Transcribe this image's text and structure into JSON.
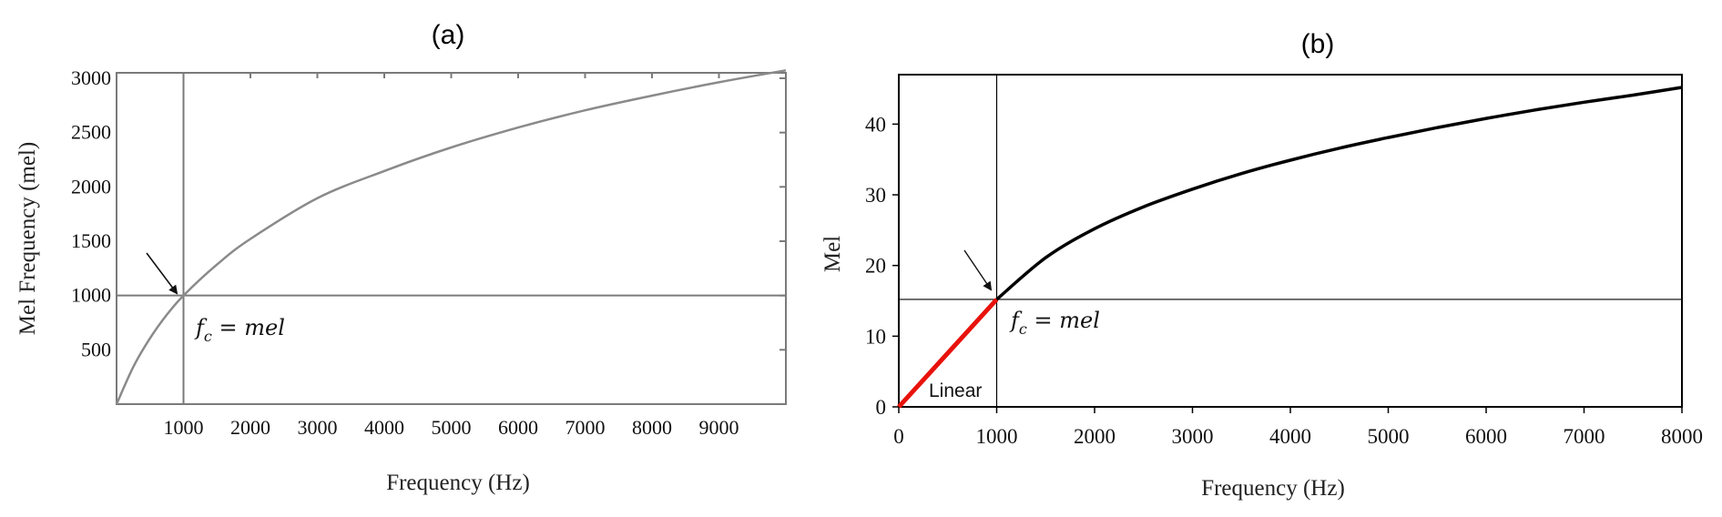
{
  "chart_data": [
    {
      "type": "line",
      "panel_title": "(a)",
      "xlabel": "Frequency (Hz)",
      "ylabel": "Mel Frequency (mel)",
      "xlim": [
        0,
        10000
      ],
      "ylim": [
        0,
        3050
      ],
      "x_ticks": [
        1000,
        2000,
        3000,
        4000,
        5000,
        6000,
        7000,
        8000,
        9000
      ],
      "y_ticks": [
        500,
        1000,
        1500,
        2000,
        2500,
        3000
      ],
      "series": [
        {
          "x": [
            0,
            250,
            500,
            750,
            1000,
            1500,
            2000,
            3000,
            4000,
            5000,
            6000,
            7000,
            8000,
            9000,
            10000
          ],
          "y": [
            0,
            343,
            607,
            822,
            1000,
            1285,
            1521,
            1896,
            2146,
            2363,
            2546,
            2705,
            2840,
            2963,
            3073
          ]
        }
      ],
      "reference_lines": {
        "x": 1000,
        "y": 1000
      },
      "annotation": {
        "text": "f_c = mel",
        "x": 1000,
        "y": 1000
      },
      "grid": false,
      "colors": {
        "curve": "#8a8a8a",
        "axes": "#7a7a7a"
      }
    },
    {
      "type": "line",
      "panel_title": "(b)",
      "xlabel": "Frequency (Hz)",
      "ylabel": "Mel",
      "xlim": [
        0,
        8000
      ],
      "ylim": [
        0,
        47
      ],
      "x_ticks": [
        0,
        1000,
        2000,
        3000,
        4000,
        5000,
        6000,
        7000,
        8000
      ],
      "y_ticks": [
        0,
        10,
        20,
        30,
        40
      ],
      "series": [
        {
          "name": "Linear",
          "x": [
            0,
            1000
          ],
          "y": [
            0,
            15.2
          ]
        },
        {
          "x": [
            1000,
            1500,
            2000,
            2500,
            3000,
            3500,
            4000,
            4500,
            5000,
            5500,
            6000,
            6500,
            7000,
            7500,
            8000
          ],
          "y": [
            15.2,
            21.1,
            25.2,
            28.3,
            30.8,
            33.0,
            34.9,
            36.6,
            38.1,
            39.5,
            40.8,
            42.0,
            43.1,
            44.1,
            45.2
          ]
        }
      ],
      "reference_lines": {
        "x": 1000,
        "y": 15.2
      },
      "annotation": {
        "text": "f_c = mel",
        "x": 1000,
        "y": 15.2
      },
      "grid": false,
      "colors": {
        "linear": "#e8120c",
        "curve": "#000000",
        "axes": "#000000"
      }
    }
  ]
}
